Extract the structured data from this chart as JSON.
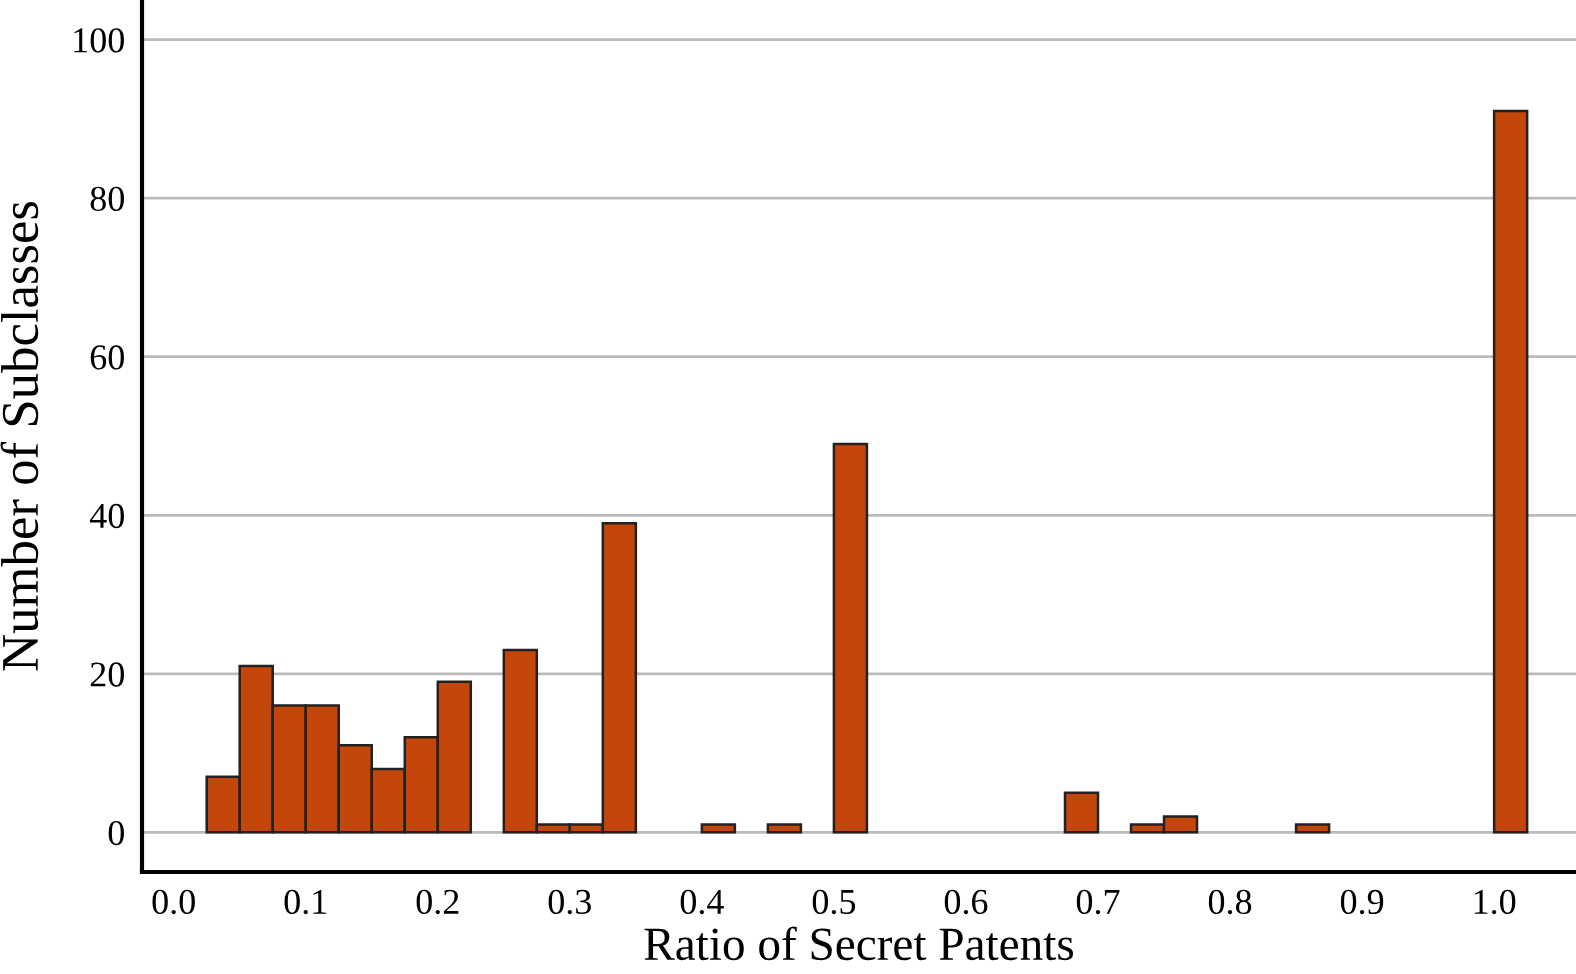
{
  "chart_data": {
    "type": "histogram",
    "xlabel": "Ratio of Secret Patents",
    "ylabel": "Number of Subclasses",
    "bins": [
      0.025,
      0.05,
      0.075,
      0.1,
      0.125,
      0.15,
      0.175,
      0.2,
      0.225,
      0.25,
      0.275,
      0.3,
      0.325,
      0.35,
      0.375,
      0.4,
      0.425,
      0.45,
      0.475,
      0.5,
      0.525,
      0.55,
      0.575,
      0.6,
      0.625,
      0.65,
      0.675,
      0.7,
      0.725,
      0.75,
      0.775,
      0.8,
      0.825,
      0.85,
      0.875,
      0.9,
      0.925,
      0.95,
      0.975,
      1.0,
      1.025
    ],
    "values": [
      7,
      21,
      16,
      16,
      11,
      8,
      12,
      19,
      0,
      23,
      1,
      1,
      39,
      0,
      0,
      1,
      0,
      1,
      0,
      49,
      0,
      0,
      0,
      0,
      0,
      0,
      5,
      0,
      1,
      2,
      0,
      0,
      0,
      1,
      0,
      0,
      0,
      0,
      0,
      91
    ],
    "color": "#c4460a",
    "xlim": [
      -0.024,
      1.062
    ],
    "ylim": [
      -5,
      105
    ],
    "xticks": [
      {
        "value": 0.0,
        "label": "0.0"
      },
      {
        "value": 0.1,
        "label": "0.1"
      },
      {
        "value": 0.2,
        "label": "0.2"
      },
      {
        "value": 0.3,
        "label": "0.3"
      },
      {
        "value": 0.4,
        "label": "0.4"
      },
      {
        "value": 0.5,
        "label": "0.5"
      },
      {
        "value": 0.6,
        "label": "0.6"
      },
      {
        "value": 0.7,
        "label": "0.7"
      },
      {
        "value": 0.8,
        "label": "0.8"
      },
      {
        "value": 0.9,
        "label": "0.9"
      },
      {
        "value": 1.0,
        "label": "1.0"
      }
    ],
    "yticks": [
      0,
      20,
      40,
      60,
      80,
      100
    ],
    "grid": "y"
  }
}
